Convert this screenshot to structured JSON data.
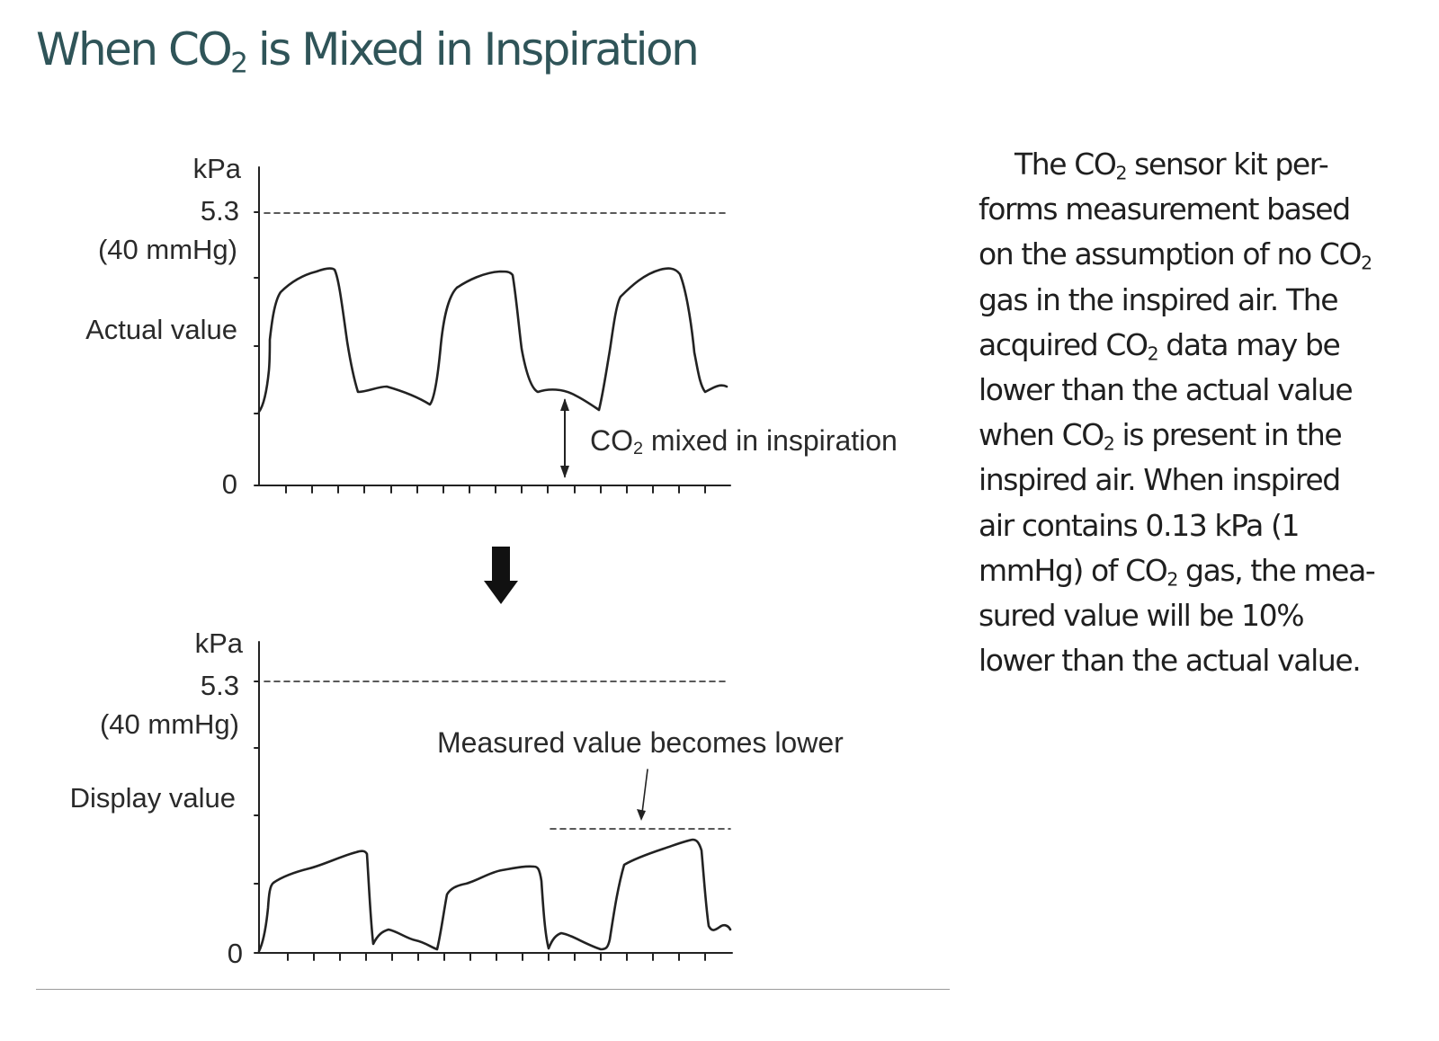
{
  "title": {
    "before": "When CO",
    "sub": "2",
    "after": " is Mixed in Inspiration"
  },
  "top_chart": {
    "unit": "kPa",
    "ref_value": "5.3",
    "ref_mmhg": "(40 mmHg)",
    "series_label": "Actual value",
    "zero": "0",
    "annotation": {
      "before": "CO",
      "sub": "2",
      "after": " mixed in inspiration"
    }
  },
  "bottom_chart": {
    "unit": "kPa",
    "ref_value": "5.3",
    "ref_mmhg": "(40 mmHg)",
    "series_label": "Display value",
    "zero": "0",
    "annotation": "Measured value becomes lower"
  },
  "paragraph": {
    "lines": [
      {
        "text": "The CO",
        "sub": "2",
        "after": " sensor kit per-"
      },
      {
        "text": "forms measurement based"
      },
      {
        "text": "on the assumption of no CO",
        "sub": "2"
      },
      {
        "text": "gas in the inspired air. The"
      },
      {
        "text": "acquired CO",
        "sub": "2",
        "after": " data may be"
      },
      {
        "text": "lower than the actual value"
      },
      {
        "text": "when CO",
        "sub": "2",
        "after": " is present in the"
      },
      {
        "text": "inspired air. When inspired"
      },
      {
        "text": "air contains 0.13 kPa (1"
      },
      {
        "text": "mmHg) of CO",
        "sub": "2",
        "after": " gas, the mea-"
      },
      {
        "text": "sured value will be 10%"
      },
      {
        "text": "lower than the actual value."
      }
    ]
  },
  "colors": {
    "title": "#2f5458",
    "text": "#1f1f1f",
    "figure": "#222222"
  }
}
